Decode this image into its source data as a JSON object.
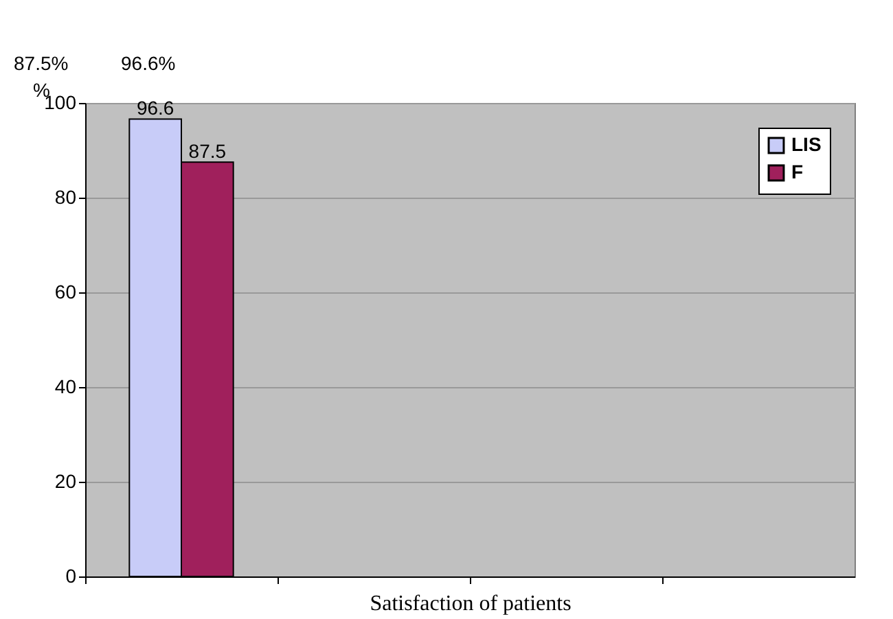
{
  "chart_data": {
    "type": "bar",
    "xlabel": "Satisfaction of patients",
    "ylabel": "%",
    "categories": [
      null,
      null,
      null,
      null
    ],
    "series": [
      {
        "name": "LIS",
        "color": "#c8ccf8",
        "values": [
          96.6,
          null,
          null,
          null
        ]
      },
      {
        "name": "F",
        "color": "#a0205c",
        "values": [
          87.5,
          null,
          null,
          null
        ]
      }
    ],
    "ylim": [
      0,
      100
    ],
    "yticks": [
      0,
      20,
      40,
      60,
      80,
      100
    ],
    "grid": "y",
    "legend": "top right",
    "data_labels": true,
    "annotations": [
      "87.5%",
      "96.6%"
    ]
  }
}
